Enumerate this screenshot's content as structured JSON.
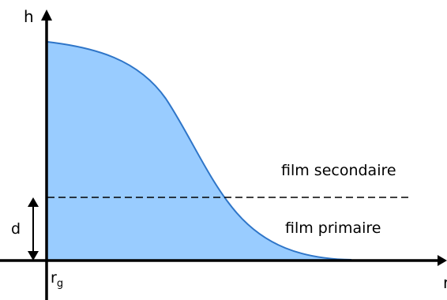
{
  "diagram": {
    "axes": {
      "y_label": "h",
      "x_label": "r",
      "origin_label_main": "r",
      "origin_label_sub": "g"
    },
    "regions": {
      "upper_label": "film secondaire",
      "lower_label": "film primaire"
    },
    "thickness_label": "d",
    "colors": {
      "fill": "#99ccff",
      "curve": "#2e75c8",
      "axis": "#000000",
      "dashed_line": "#000000"
    }
  }
}
